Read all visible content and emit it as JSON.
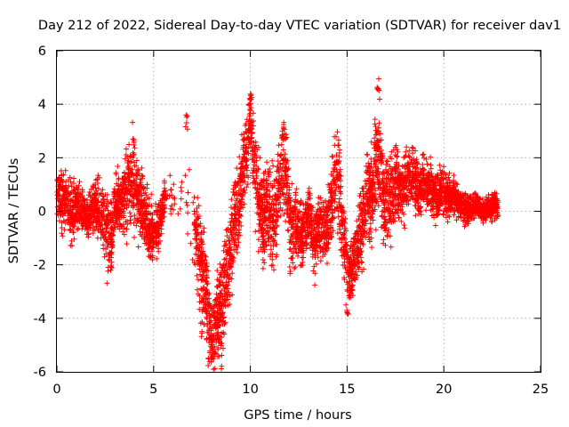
{
  "chart_data": {
    "type": "scatter",
    "title": "Day 212 of 2022, Sidereal Day-to-day VTEC variation (SDTVAR) for receiver dav1",
    "xlabel": "GPS time / hours",
    "ylabel": "SDTVAR / TECUs",
    "xlim": [
      0,
      25
    ],
    "ylim": [
      -6,
      6
    ],
    "xticks": [
      0,
      5,
      10,
      15,
      20,
      25
    ],
    "yticks": [
      -6,
      -4,
      -2,
      0,
      2,
      4,
      6
    ],
    "xtick_labels": [
      "0",
      "5",
      "10",
      "15",
      "20",
      "25"
    ],
    "ytick_labels": [
      "-6",
      "-4",
      "-2",
      "0",
      "2",
      "4",
      "6"
    ],
    "grid": true,
    "marker": "plus",
    "marker_color": "#ff0000",
    "series": [
      {
        "name": "SDTVAR",
        "color": "#ff0000",
        "envelope_note": "approximate trend of the dense point cloud (x in hours, y in TECU)",
        "x": [
          0.0,
          0.2,
          0.5,
          0.8,
          1.0,
          1.3,
          1.6,
          2.0,
          2.3,
          2.6,
          2.8,
          3.0,
          3.3,
          3.6,
          3.9,
          4.1,
          4.4,
          4.7,
          5.0,
          5.3,
          5.6,
          6.1,
          6.6,
          7.0,
          7.4,
          7.7,
          8.0,
          8.3,
          8.6,
          8.9,
          9.2,
          9.5,
          9.8,
          10.0,
          10.3,
          10.6,
          10.9,
          11.2,
          11.5,
          11.8,
          12.1,
          12.4,
          12.7,
          13.0,
          13.3,
          13.6,
          13.9,
          14.2,
          14.5,
          14.8,
          15.1,
          15.4,
          15.7,
          16.0,
          16.3,
          16.6,
          16.9,
          17.2,
          17.5,
          17.8,
          18.1,
          18.4,
          18.7,
          19.0,
          19.3,
          19.6,
          19.9,
          20.2,
          20.5,
          20.8,
          21.1,
          21.4,
          21.7,
          22.0,
          22.3,
          22.6,
          22.8
        ],
        "center": [
          0.8,
          0.4,
          0.5,
          -0.2,
          0.2,
          0.0,
          -0.3,
          0.3,
          -0.2,
          -0.8,
          -1.2,
          0.2,
          0.3,
          0.6,
          1.2,
          0.8,
          0.2,
          -0.5,
          -1.0,
          -0.5,
          0.5,
          0.5,
          0.0,
          -0.3,
          -1.8,
          -3.2,
          -4.8,
          -4.0,
          -3.2,
          -1.8,
          -0.5,
          0.8,
          2.3,
          3.4,
          1.0,
          -0.3,
          0.3,
          -0.5,
          1.2,
          1.8,
          -0.8,
          -0.5,
          -1.0,
          -0.2,
          -1.2,
          -0.4,
          -0.8,
          0.2,
          1.5,
          -1.0,
          -2.5,
          -1.8,
          -0.8,
          0.2,
          0.8,
          2.0,
          0.5,
          0.8,
          1.0,
          0.8,
          1.2,
          1.4,
          0.8,
          1.0,
          0.9,
          0.5,
          0.8,
          0.5,
          0.6,
          0.3,
          0.1,
          0.1,
          0.2,
          0.0,
          0.1,
          0.2,
          0.2
        ],
        "spread": [
          0.7,
          0.9,
          1.0,
          1.0,
          0.8,
          0.7,
          0.7,
          0.8,
          1.0,
          1.4,
          1.1,
          0.9,
          1.0,
          1.4,
          1.5,
          1.2,
          1.2,
          1.0,
          0.9,
          0.7,
          0.6,
          0.6,
          1.2,
          1.5,
          1.8,
          1.5,
          1.2,
          1.5,
          1.7,
          1.5,
          1.4,
          1.3,
          1.2,
          1.1,
          1.5,
          1.6,
          1.5,
          1.6,
          1.4,
          1.6,
          1.4,
          1.0,
          1.0,
          0.9,
          1.1,
          1.0,
          1.0,
          1.4,
          1.5,
          1.2,
          0.9,
          1.0,
          1.3,
          1.5,
          1.5,
          2.0,
          1.5,
          1.4,
          1.2,
          1.0,
          1.3,
          1.0,
          0.9,
          0.8,
          0.8,
          0.8,
          0.7,
          0.7,
          0.6,
          0.5,
          0.5,
          0.5,
          0.4,
          0.4,
          0.4,
          0.5,
          0.6
        ],
        "observed_peaks": [
          {
            "x": 16.6,
            "y": 5.0
          },
          {
            "x": 10.0,
            "y": 4.4
          },
          {
            "x": 8.5,
            "y": -5.7
          },
          {
            "x": 15.0,
            "y": -3.3
          },
          {
            "x": 6.7,
            "y": 3.6
          },
          {
            "x": 11.7,
            "y": 3.3
          },
          {
            "x": 4.0,
            "y": 2.7
          }
        ],
        "approx_point_count": 5500
      }
    ]
  }
}
